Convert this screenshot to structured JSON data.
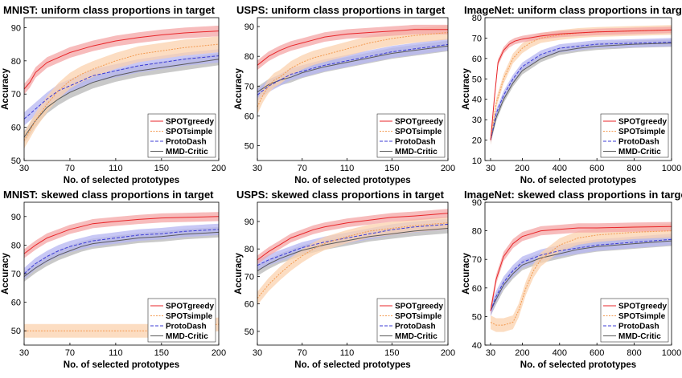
{
  "colors": {
    "spot_greedy": "#e8262a",
    "spot_simple": "#f39a50",
    "protodash": "#3b3bd6",
    "mmd_critic": "#5a5a5a",
    "band_greedy": "#f4a6a6",
    "band_simple": "#fbd2ad",
    "band_protodash": "#b6b6f2",
    "band_mmd": "#b7b7b7"
  },
  "chart_data": [
    {
      "type": "line",
      "title": "MNIST: uniform class proportions in target",
      "xlabel": "No. of selected prototypes",
      "ylabel": "Accuracy",
      "xlim": [
        30,
        200
      ],
      "ylim": [
        50,
        93
      ],
      "xticks": [
        30,
        70,
        110,
        150,
        200
      ],
      "yticks": [
        50,
        60,
        70,
        80,
        90
      ],
      "legend": "bottom-right",
      "series": [
        {
          "name": "SPOTgreedy",
          "x": [
            30,
            35,
            40,
            50,
            60,
            70,
            80,
            90,
            110,
            130,
            150,
            170,
            200
          ],
          "values": [
            71.5,
            73.5,
            76.5,
            79.5,
            81,
            82.5,
            83.5,
            84.5,
            86,
            87,
            87.8,
            88.4,
            89
          ]
        },
        {
          "name": "SPOTsimple",
          "x": [
            30,
            40,
            50,
            60,
            70,
            80,
            90,
            110,
            130,
            150,
            170,
            200
          ],
          "values": [
            56,
            62,
            67,
            71,
            74,
            76,
            77.5,
            80,
            82,
            83,
            84,
            85
          ]
        },
        {
          "name": "ProtoDash",
          "x": [
            30,
            40,
            50,
            60,
            70,
            80,
            90,
            110,
            130,
            150,
            170,
            200
          ],
          "values": [
            62.5,
            65.5,
            68.5,
            71,
            72.5,
            74,
            75.5,
            77,
            78.5,
            79.5,
            80.5,
            81.5
          ]
        },
        {
          "name": "MMD-Critic",
          "x": [
            30,
            40,
            50,
            60,
            70,
            80,
            90,
            110,
            130,
            150,
            170,
            200
          ],
          "values": [
            57,
            62,
            66,
            68.5,
            70.5,
            72,
            73.5,
            75.5,
            77,
            78,
            79,
            80.5
          ]
        }
      ]
    },
    {
      "type": "line",
      "title": "USPS: uniform class proportions in target",
      "xlabel": "No. of selected prototypes",
      "ylabel": "Accuracy",
      "xlim": [
        30,
        200
      ],
      "ylim": [
        45,
        93
      ],
      "xticks": [
        30,
        70,
        110,
        150,
        200
      ],
      "yticks": [
        50,
        60,
        70,
        80,
        90
      ],
      "legend": "bottom-right",
      "series": [
        {
          "name": "SPOTgreedy",
          "x": [
            30,
            40,
            50,
            60,
            70,
            80,
            90,
            110,
            130,
            150,
            170,
            200
          ],
          "values": [
            77,
            80,
            82,
            83.5,
            84.5,
            85.5,
            86.5,
            87.5,
            88,
            88.5,
            89,
            89
          ]
        },
        {
          "name": "SPOTsimple",
          "x": [
            30,
            35,
            40,
            45,
            50,
            55,
            60,
            70,
            80,
            90,
            110,
            130,
            150,
            170,
            200
          ],
          "values": [
            63,
            67,
            70,
            72,
            73,
            74.5,
            76,
            78,
            79.5,
            80.5,
            82.5,
            84.5,
            86,
            87,
            88
          ]
        },
        {
          "name": "ProtoDash",
          "x": [
            30,
            40,
            50,
            60,
            70,
            80,
            90,
            110,
            130,
            150,
            170,
            200
          ],
          "values": [
            67,
            70,
            72,
            74,
            75,
            76,
            77,
            78.5,
            80,
            81.5,
            82.5,
            84
          ]
        },
        {
          "name": "MMD-Critic",
          "x": [
            30,
            40,
            50,
            60,
            70,
            80,
            90,
            110,
            130,
            150,
            170,
            200
          ],
          "values": [
            68,
            70.5,
            72,
            73,
            74.5,
            75.5,
            76.5,
            78,
            79.5,
            81,
            82,
            83.5
          ]
        }
      ]
    },
    {
      "type": "line",
      "title": "ImageNet: uniform class proportions in target",
      "xlabel": "No. of selected prototypes",
      "ylabel": "Accuracy",
      "xlim": [
        0,
        1000
      ],
      "ylim": [
        10,
        80
      ],
      "xticks": [
        30,
        200,
        400,
        600,
        800,
        1000
      ],
      "yticks": [
        10,
        20,
        30,
        40,
        50,
        60,
        70,
        80
      ],
      "legend": "bottom-right",
      "series": [
        {
          "name": "SPOTgreedy",
          "x": [
            30,
            50,
            70,
            100,
            130,
            160,
            200,
            300,
            400,
            600,
            800,
            1000
          ],
          "values": [
            20,
            40,
            58,
            64,
            67,
            68.5,
            69.5,
            71,
            72,
            73,
            73.5,
            74
          ]
        },
        {
          "name": "SPOTsimple",
          "x": [
            30,
            60,
            100,
            150,
            200,
            250,
            300,
            400,
            500,
            600,
            800,
            1000
          ],
          "values": [
            20,
            38,
            50,
            60,
            65,
            68,
            70,
            71.5,
            72.5,
            73,
            73.5,
            74
          ]
        },
        {
          "name": "ProtoDash",
          "x": [
            30,
            60,
            100,
            150,
            200,
            300,
            400,
            500,
            600,
            800,
            1000
          ],
          "values": [
            20,
            33,
            42,
            50,
            56,
            62,
            65,
            66,
            67,
            67.5,
            68
          ]
        },
        {
          "name": "MMD-Critic",
          "x": [
            30,
            60,
            100,
            150,
            200,
            300,
            400,
            500,
            600,
            800,
            1000
          ],
          "values": [
            20,
            31,
            40,
            48,
            54,
            60,
            63.5,
            65,
            66,
            67,
            67.5
          ]
        }
      ]
    },
    {
      "type": "line",
      "title": "MNIST: skewed class proportions in target",
      "xlabel": "No. of selected prototypes",
      "ylabel": "Accuracy",
      "xlim": [
        30,
        200
      ],
      "ylim": [
        45,
        95
      ],
      "xticks": [
        30,
        70,
        110,
        150,
        200
      ],
      "yticks": [
        50,
        60,
        70,
        80,
        90
      ],
      "legend": "bottom-right",
      "series": [
        {
          "name": "SPOTgreedy",
          "x": [
            30,
            40,
            50,
            60,
            70,
            80,
            90,
            110,
            130,
            150,
            170,
            200
          ],
          "values": [
            77,
            80,
            82.5,
            84,
            85.5,
            86.5,
            87.5,
            88.3,
            89,
            89.5,
            89.7,
            90
          ]
        },
        {
          "name": "SPOTsimple",
          "x": [
            30,
            100,
            140,
            150,
            160,
            170,
            180,
            190,
            200
          ],
          "values": [
            50,
            50,
            50,
            50.3,
            50.6,
            51,
            51.4,
            51.8,
            52.3
          ]
        },
        {
          "name": "ProtoDash",
          "x": [
            30,
            40,
            50,
            60,
            70,
            80,
            90,
            110,
            130,
            150,
            170,
            200
          ],
          "values": [
            70,
            73.5,
            76,
            78,
            79.5,
            80.5,
            81.5,
            82.5,
            83.5,
            84,
            84.8,
            85.5
          ]
        },
        {
          "name": "MMD-Critic",
          "x": [
            30,
            40,
            50,
            60,
            70,
            80,
            90,
            110,
            130,
            150,
            170,
            200
          ],
          "values": [
            69,
            72,
            74.5,
            76.5,
            78,
            79.5,
            80.5,
            81.5,
            82.5,
            83,
            83.8,
            84.5
          ]
        }
      ]
    },
    {
      "type": "line",
      "title": "USPS: skewed class proportions in target",
      "xlabel": "No. of selected prototypes",
      "ylabel": "Accuracy",
      "xlim": [
        30,
        200
      ],
      "ylim": [
        45,
        97
      ],
      "xticks": [
        30,
        70,
        110,
        150,
        200
      ],
      "yticks": [
        50,
        60,
        70,
        80,
        90
      ],
      "legend": "bottom-right",
      "series": [
        {
          "name": "SPOTgreedy",
          "x": [
            30,
            40,
            50,
            60,
            70,
            80,
            90,
            110,
            130,
            150,
            170,
            200
          ],
          "values": [
            76,
            79,
            81.5,
            84,
            85.5,
            87,
            88,
            89.5,
            90.5,
            91.5,
            92,
            93
          ]
        },
        {
          "name": "SPOTsimple",
          "x": [
            30,
            40,
            50,
            60,
            70,
            80,
            90,
            110,
            130,
            150,
            170,
            200
          ],
          "values": [
            62,
            67,
            71,
            74.5,
            77.5,
            80,
            82,
            84.5,
            86.5,
            87.5,
            88.5,
            89.5
          ]
        },
        {
          "name": "ProtoDash",
          "x": [
            30,
            40,
            50,
            60,
            70,
            80,
            90,
            110,
            130,
            150,
            170,
            200
          ],
          "values": [
            74,
            76,
            77.5,
            79,
            80.5,
            81.5,
            82.5,
            84,
            85.5,
            87,
            88,
            89
          ]
        },
        {
          "name": "MMD-Critic",
          "x": [
            30,
            40,
            50,
            60,
            70,
            80,
            90,
            110,
            130,
            150,
            170,
            200
          ],
          "values": [
            72,
            74.5,
            76.5,
            78,
            79.5,
            80.5,
            81.5,
            83,
            84.5,
            85.5,
            86.5,
            87.5
          ]
        }
      ]
    },
    {
      "type": "line",
      "title": "ImageNet: skewed class proportions in target",
      "xlabel": "No. of selected prototypes",
      "ylabel": "Accuracy",
      "xlim": [
        0,
        1000
      ],
      "ylim": [
        40,
        90
      ],
      "xticks": [
        30,
        200,
        400,
        600,
        800,
        1000
      ],
      "yticks": [
        40,
        50,
        60,
        70,
        80,
        90
      ],
      "legend": "bottom-right",
      "series": [
        {
          "name": "SPOTgreedy",
          "x": [
            30,
            60,
            100,
            150,
            200,
            300,
            400,
            500,
            600,
            800,
            1000
          ],
          "values": [
            52,
            63,
            71,
            75.5,
            78,
            80,
            80.5,
            81,
            81,
            81.3,
            81.5
          ]
        },
        {
          "name": "SPOTsimple",
          "x": [
            30,
            60,
            100,
            150,
            180,
            220,
            260,
            300,
            400,
            500,
            600,
            800,
            1000
          ],
          "values": [
            48,
            47,
            47,
            48,
            52,
            60,
            66,
            70,
            75,
            77.5,
            78.5,
            79.5,
            80
          ]
        },
        {
          "name": "ProtoDash",
          "x": [
            30,
            60,
            100,
            150,
            200,
            300,
            400,
            500,
            600,
            800,
            1000
          ],
          "values": [
            52,
            57,
            62,
            66,
            69,
            71.5,
            73,
            74,
            75,
            76,
            77
          ]
        },
        {
          "name": "MMD-Critic",
          "x": [
            30,
            60,
            100,
            150,
            200,
            300,
            400,
            500,
            600,
            800,
            1000
          ],
          "values": [
            52,
            56,
            61,
            65,
            68,
            70.5,
            72,
            73.5,
            74.5,
            75.5,
            76.5
          ]
        }
      ]
    }
  ]
}
